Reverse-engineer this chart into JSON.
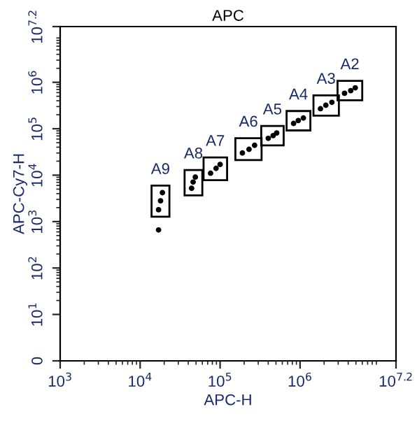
{
  "chart_data": {
    "type": "scatter",
    "title": "APC",
    "xlabel": "APC-H",
    "ylabel": "APC-Cy7-H",
    "log": "xy",
    "grid": false,
    "marker": "circle",
    "xlim": [
      1000,
      15848932
    ],
    "ylim": [
      0,
      15848932
    ],
    "xticks": [
      {
        "value": 1000,
        "label": "10$^{3}$"
      },
      {
        "value": 10000,
        "label": "10$^{4}$"
      },
      {
        "value": 100000,
        "label": "10$^{5}$"
      },
      {
        "value": 1000000,
        "label": "10$^{6}$"
      },
      {
        "value": 15848932,
        "label": "10$^{7.2}$"
      }
    ],
    "yticks": [
      0,
      {
        "value": 10,
        "label": "10$^{1}$"
      },
      {
        "value": 100,
        "label": "10$^{2}$"
      },
      {
        "value": 1000,
        "label": "10$^{3}$"
      },
      {
        "value": 10000,
        "label": "10$^{4}$"
      },
      {
        "value": 100000,
        "label": "10$^{5}$"
      },
      {
        "value": 1000000,
        "label": "10$^{6}$"
      },
      {
        "value": 15848932,
        "label": "10$^{7.2}$"
      }
    ],
    "series": [
      {
        "color": "#000000",
        "x": [
          3600000,
          4300000,
          4900000
        ],
        "values": [
          580000,
          660000,
          760000
        ]
      },
      {
        "color": "#000000",
        "x": [
          1800000,
          2100000,
          2500000
        ],
        "values": [
          270000,
          320000,
          370000
        ]
      },
      {
        "color": "#000000",
        "x": [
          830000,
          950000,
          1100000
        ],
        "values": [
          130000,
          150000,
          170000
        ]
      },
      {
        "color": "#000000",
        "x": [
          400000,
          460000,
          510000
        ],
        "values": [
          62000,
          71000,
          81000
        ]
      },
      {
        "color": "#000000",
        "x": [
          190000,
          230000,
          270000
        ],
        "values": [
          30000,
          36000,
          44000
        ]
      },
      {
        "color": "#000000",
        "x": [
          76000,
          89000,
          100000
        ],
        "values": [
          11000,
          14000,
          17000
        ]
      },
      {
        "color": "#000000",
        "x": [
          44000,
          46000,
          49000
        ],
        "values": [
          5200,
          7100,
          9100
        ]
      },
      {
        "color": "#000000",
        "x": [
          17000,
          18000,
          19000
        ],
        "values": [
          1800,
          2800,
          4200
        ]
      },
      {
        "color": "#000000",
        "x": [
          17000
        ],
        "values": [
          660
        ]
      }
    ],
    "annotations": [
      "A2",
      "A3",
      "A4",
      "A5",
      "A6",
      "A7",
      "A8",
      "A9"
    ]
  }
}
